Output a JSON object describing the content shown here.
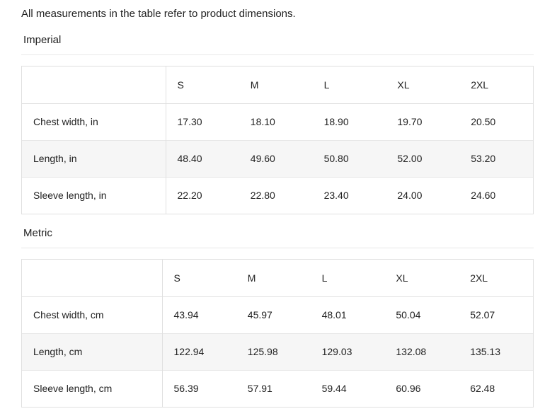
{
  "note": "All measurements in the table refer to product dimensions.",
  "sections": [
    {
      "title": "Imperial",
      "columns": [
        "S",
        "M",
        "L",
        "XL",
        "2XL"
      ],
      "rows": [
        {
          "label": "Chest width, in",
          "values": [
            "17.30",
            "18.10",
            "18.90",
            "19.70",
            "20.50"
          ]
        },
        {
          "label": "Length, in",
          "values": [
            "48.40",
            "49.60",
            "50.80",
            "52.00",
            "53.20"
          ]
        },
        {
          "label": "Sleeve length, in",
          "values": [
            "22.20",
            "22.80",
            "23.40",
            "24.00",
            "24.60"
          ]
        }
      ]
    },
    {
      "title": "Metric",
      "columns": [
        "S",
        "M",
        "L",
        "XL",
        "2XL"
      ],
      "rows": [
        {
          "label": "Chest width, cm",
          "values": [
            "43.94",
            "45.97",
            "48.01",
            "50.04",
            "52.07"
          ]
        },
        {
          "label": "Length, cm",
          "values": [
            "122.94",
            "125.98",
            "129.03",
            "132.08",
            "135.13"
          ]
        },
        {
          "label": "Sleeve length, cm",
          "values": [
            "56.39",
            "57.91",
            "59.44",
            "60.96",
            "62.48"
          ]
        }
      ]
    }
  ],
  "colors": {
    "text": "#212121",
    "table_border": "#e0e0e0",
    "row_divider": "#e7e7e7",
    "zebra_row_background": "#f6f6f6",
    "rule": "#e8e8e8",
    "background": "#ffffff"
  }
}
